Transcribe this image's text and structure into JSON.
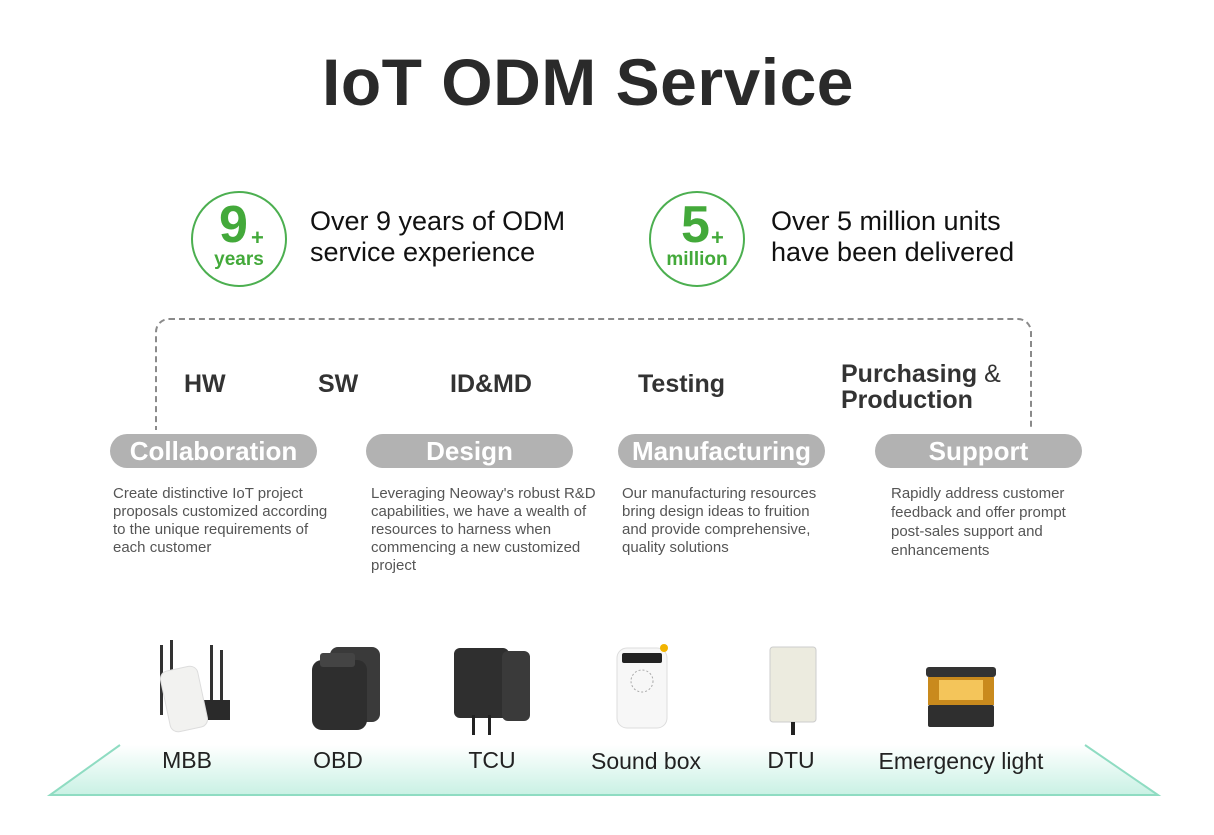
{
  "title": "IoT ODM Service",
  "accent_color": "#4caf50",
  "stats": [
    {
      "number": "9",
      "plus": "+",
      "unit": "years",
      "line1": "Over 9 years of ODM",
      "line2": "service experience"
    },
    {
      "number": "5",
      "plus": "+",
      "unit": "million",
      "line1": "Over 5 million units",
      "line2": "have been delivered"
    }
  ],
  "stages": {
    "hw": "HW",
    "sw": "SW",
    "idmd": "ID&MD",
    "testing": "Testing",
    "purchasing": "Purchasing",
    "amp": "&",
    "production": "Production"
  },
  "phases": [
    {
      "label": "Collaboration",
      "desc": "Create distinctive IoT project proposals customized according to the unique requirements of each customer"
    },
    {
      "label": "Design",
      "desc": "Leveraging Neoway's robust R&D capabilities, we have a wealth of resources to harness when commencing a new customized project"
    },
    {
      "label": "Manufacturing",
      "desc": "Our manufacturing resources bring design ideas to fruition and provide comprehensive, quality solutions"
    },
    {
      "label": "Support",
      "desc": "Rapidly address customer feedback and offer prompt post-sales support and enhancements"
    }
  ],
  "products": [
    {
      "label": "MBB",
      "icon": "router-icon"
    },
    {
      "label": "OBD",
      "icon": "obd-dongle-icon"
    },
    {
      "label": "TCU",
      "icon": "tcu-module-icon"
    },
    {
      "label": "Sound box",
      "icon": "sound-box-icon"
    },
    {
      "label": "DTU",
      "icon": "dtu-box-icon"
    },
    {
      "label": "Emergency light",
      "icon": "emergency-light-icon"
    }
  ]
}
